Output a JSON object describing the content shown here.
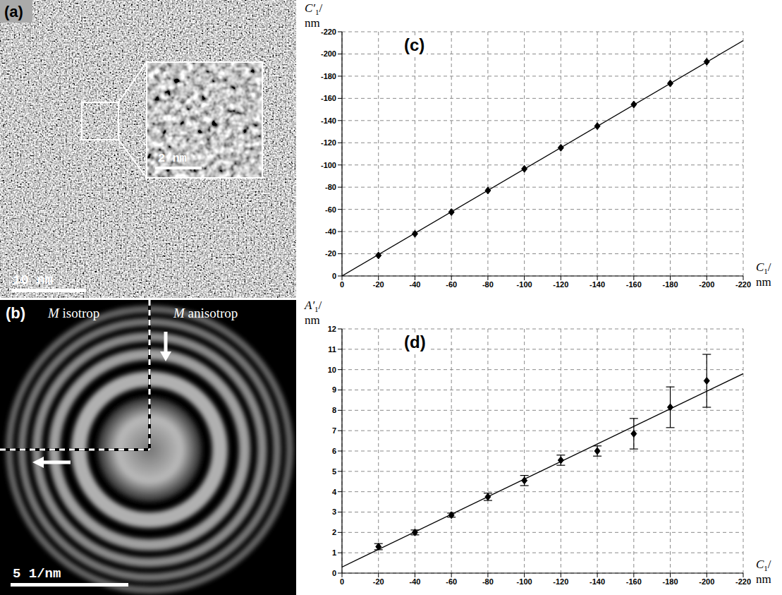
{
  "images": {
    "a": {
      "label": "(a)",
      "scale_bar": "10 nm",
      "inset_scale_bar": "2 nm"
    },
    "b": {
      "label": "(b)",
      "left_text": "M isotrop",
      "right_text": "M anisotrop",
      "scale_bar": "5 1/nm"
    }
  },
  "chart_data": [
    {
      "type": "scatter",
      "title": "(c)",
      "xlabel": {
        "symbol": "C",
        "subscript": "1",
        "after": "/",
        "unit": "nm"
      },
      "ylabel": {
        "symbol": "C′",
        "subscript": "1",
        "after": "/",
        "unit": "nm"
      },
      "xlim": [
        0,
        -220
      ],
      "xticks": [
        0,
        -20,
        -40,
        -60,
        -80,
        -100,
        -120,
        -140,
        -160,
        -180,
        -200,
        -220
      ],
      "ylim": [
        0,
        -220
      ],
      "yticks": [
        0,
        -20,
        -40,
        -60,
        -80,
        -100,
        -120,
        -140,
        -160,
        -180,
        -200,
        -220
      ],
      "grid": true,
      "series": [
        {
          "type": "scatter",
          "marker": "diamond",
          "color": "#000000",
          "x": [
            -20,
            -40,
            -60,
            -80,
            -100,
            -120,
            -140,
            -160,
            -180,
            -200
          ],
          "values": [
            -18.5,
            -38,
            -57.5,
            -77,
            -96.5,
            -115.5,
            -135,
            -154.5,
            -173.5,
            -193
          ]
        },
        {
          "type": "line",
          "line_style": "solid",
          "color": "#000000",
          "x": [
            0,
            -220
          ],
          "values": [
            0,
            -212
          ]
        }
      ]
    },
    {
      "type": "scatter",
      "title": "(d)",
      "xlabel": {
        "symbol": "C",
        "subscript": "1",
        "after": "/",
        "unit": "nm"
      },
      "ylabel": {
        "symbol": "A′",
        "subscript": "1",
        "after": "/",
        "unit": "nm"
      },
      "xlim": [
        0,
        -220
      ],
      "xticks": [
        0,
        -20,
        -40,
        -60,
        -80,
        -100,
        -120,
        -140,
        -160,
        -180,
        -200,
        -220
      ],
      "ylim": [
        0,
        12
      ],
      "yticks": [
        0,
        1,
        2,
        3,
        4,
        5,
        6,
        7,
        8,
        9,
        10,
        11,
        12
      ],
      "grid": true,
      "series": [
        {
          "type": "scatter",
          "marker": "diamond",
          "color": "#000000",
          "x": [
            -20,
            -40,
            -60,
            -80,
            -100,
            -120,
            -140,
            -160,
            -180,
            -200
          ],
          "values": [
            1.3,
            2.0,
            2.85,
            3.75,
            4.55,
            5.55,
            6.0,
            6.85,
            8.15,
            9.45
          ],
          "error": [
            0.15,
            0.12,
            0.1,
            0.18,
            0.25,
            0.25,
            0.25,
            0.75,
            1.0,
            1.3
          ]
        },
        {
          "type": "line",
          "line_style": "solid",
          "color": "#000000",
          "x": [
            0,
            -220
          ],
          "values": [
            0.3,
            9.8
          ]
        }
      ]
    }
  ]
}
